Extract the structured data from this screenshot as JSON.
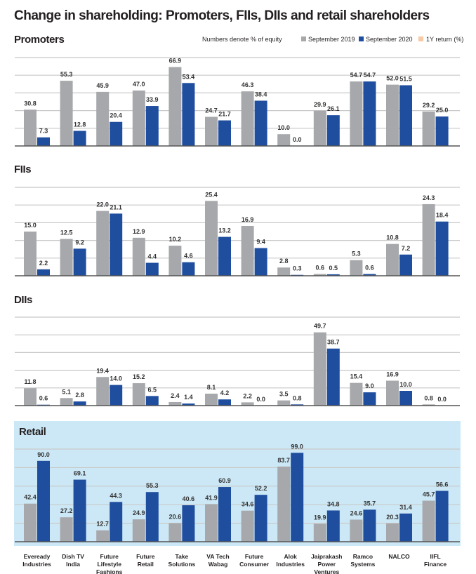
{
  "title": "Change in shareholding: Promoters, FIIs, DIIs and retail shareholders",
  "legend": {
    "note": "Numbers denote % of equity",
    "items": [
      {
        "label": "September 2019",
        "color": "#a7a8ab"
      },
      {
        "label": "September 2020",
        "color": "#1f4e9f"
      },
      {
        "label": "1Y return (%)",
        "color": "#f9c9a6"
      }
    ]
  },
  "chart_data": [
    {
      "type": "bar",
      "title": "Promoters",
      "highlight_background": "",
      "categories": [
        "Eveready Industries",
        "Dish TV India",
        "Future Lifestyle Fashions",
        "Future Retail",
        "Take Solutions",
        "VA Tech Wabag",
        "Future Consumer",
        "Alok Industries",
        "Jaiprakash Power Ventures",
        "Ramco Systems",
        "NALCO",
        "IIFL Finance"
      ],
      "series": [
        {
          "name": "September 2019",
          "values": [
            30.8,
            55.3,
            45.9,
            47.0,
            66.9,
            24.7,
            46.3,
            10.0,
            29.9,
            54.7,
            52.0,
            29.2
          ]
        },
        {
          "name": "September 2020",
          "values": [
            7.3,
            12.8,
            20.4,
            33.9,
            53.4,
            21.7,
            38.4,
            0.0,
            26.1,
            54.7,
            51.5,
            25.0
          ]
        }
      ],
      "grid": true
    },
    {
      "type": "bar",
      "title": "FIIs",
      "highlight_background": "",
      "series": [
        {
          "name": "September 2019",
          "values": [
            15.0,
            12.5,
            22.0,
            12.9,
            10.2,
            25.4,
            16.9,
            2.8,
            0.6,
            5.3,
            10.8,
            24.3
          ]
        },
        {
          "name": "September 2020",
          "values": [
            2.2,
            9.2,
            21.1,
            4.4,
            4.6,
            13.2,
            9.4,
            0.3,
            0.5,
            0.6,
            7.2,
            18.4
          ]
        }
      ],
      "grid": true
    },
    {
      "type": "bar",
      "title": "DIIs",
      "highlight_background": "",
      "series": [
        {
          "name": "September 2019",
          "values": [
            11.8,
            5.1,
            19.4,
            15.2,
            2.4,
            8.1,
            2.2,
            3.5,
            49.7,
            15.4,
            16.9,
            0.8
          ]
        },
        {
          "name": "September 2020",
          "values": [
            0.6,
            2.8,
            14.0,
            6.5,
            1.4,
            4.2,
            0.0,
            0.8,
            38.7,
            9.0,
            10.0,
            0.0
          ]
        }
      ],
      "grid": true
    },
    {
      "type": "bar",
      "title": "Retail",
      "highlight_background": "#cce8f6",
      "series": [
        {
          "name": "September 2019",
          "values": [
            42.4,
            27.2,
            12.7,
            24.9,
            20.6,
            41.9,
            34.6,
            83.7,
            19.9,
            24.6,
            20.3,
            45.7
          ]
        },
        {
          "name": "September 2020",
          "values": [
            90.0,
            69.1,
            44.3,
            55.3,
            40.6,
            60.9,
            52.2,
            99.0,
            34.8,
            35.7,
            31.4,
            56.6
          ]
        }
      ],
      "grid": true
    }
  ]
}
